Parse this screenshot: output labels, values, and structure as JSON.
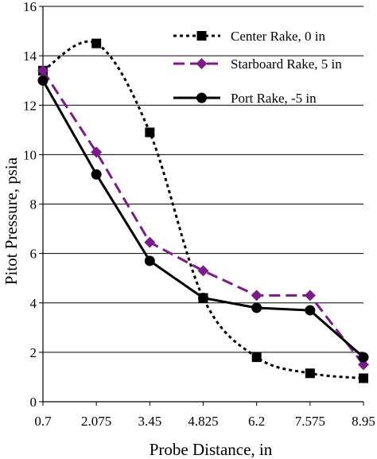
{
  "chart_data": {
    "type": "line",
    "xlabel": "Probe Distance, in",
    "ylabel": "Pitot Pressure, psia",
    "categories": [
      "0.7",
      "2.075",
      "3.45",
      "4.825",
      "6.2",
      "7.575",
      "8.95"
    ],
    "x": [
      0.7,
      2.075,
      3.45,
      4.825,
      6.2,
      7.575,
      8.95
    ],
    "xlim": [
      0.7,
      8.95
    ],
    "ylim": [
      0,
      16
    ],
    "yticks": [
      0,
      2,
      4,
      6,
      8,
      10,
      12,
      14,
      16
    ],
    "grid": "horizontal",
    "legend_position": "top-right",
    "series": [
      {
        "name": "Center Rake, 0 in",
        "color": "#000000",
        "line_style": "dotted",
        "marker": "square",
        "smooth": true,
        "x": [
          0.7,
          2.075,
          3.45,
          4.825,
          6.2,
          7.575,
          8.95
        ],
        "values": [
          13.4,
          14.5,
          10.9,
          4.2,
          1.8,
          1.15,
          0.95
        ]
      },
      {
        "name": "Starboard Rake, 5 in",
        "color": "#7b1a8c",
        "line_style": "dashed",
        "marker": "diamond",
        "smooth": false,
        "x": [
          0.7,
          2.075,
          3.45,
          4.825,
          6.2,
          7.575,
          8.95
        ],
        "values": [
          13.4,
          10.1,
          6.45,
          5.3,
          4.3,
          4.3,
          1.5
        ]
      },
      {
        "name": "Port Rake, -5 in",
        "color": "#000000",
        "line_style": "solid",
        "marker": "circle",
        "smooth": false,
        "x": [
          0.7,
          2.075,
          3.45,
          4.825,
          6.2,
          7.575,
          8.95
        ],
        "values": [
          13.0,
          9.2,
          5.7,
          4.2,
          3.8,
          3.7,
          1.8
        ]
      }
    ]
  }
}
